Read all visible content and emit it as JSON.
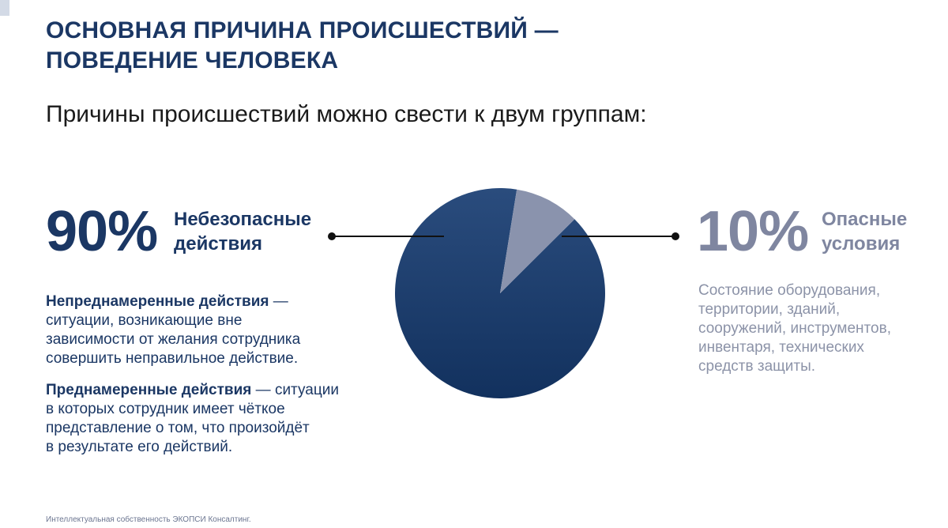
{
  "title_lines": [
    "ОСНОВНАЯ ПРИЧИНА ПРОИСШЕСТВИЙ —",
    "ПОВЕДЕНИЕ ЧЕЛОВЕКА"
  ],
  "subtitle": "Причины происшествий можно свести к двум группам:",
  "left": {
    "percent": "90%",
    "label_lines": [
      "Небезопасные",
      "действия"
    ],
    "unintended": {
      "term": "Непреднамеренные действия",
      "rest": " —",
      "lines": [
        "ситуации, возникающие вне",
        "зависимости от желания сотрудника",
        "совершить неправильное действие."
      ]
    },
    "intended": {
      "term": "Преднамеренные действия",
      "rest": " — ситуации",
      "lines": [
        "в которых сотрудник имеет чёткое",
        "представление о том, что произойдёт",
        "в результате его действий."
      ]
    }
  },
  "right": {
    "percent": "10%",
    "label_lines": [
      "Опасные",
      "условия"
    ],
    "desc_lines": [
      "Состояние оборудования,",
      "территории, зданий,",
      "сооружений, инструментов,",
      "инвентаря, технических",
      "средств защиты."
    ]
  },
  "footer": "Интеллектуальная собственность ЭКОПСИ Консалтинг.",
  "colors": {
    "primary": "#1b3764",
    "secondary": "#7f86a0",
    "pie_major_top": "#2a4c7d",
    "pie_major_bottom": "#12315e",
    "pie_minor": "#8a93ad"
  },
  "chart_data": {
    "type": "pie",
    "categories": [
      "Небезопасные действия",
      "Опасные условия"
    ],
    "values": [
      90,
      10
    ]
  }
}
